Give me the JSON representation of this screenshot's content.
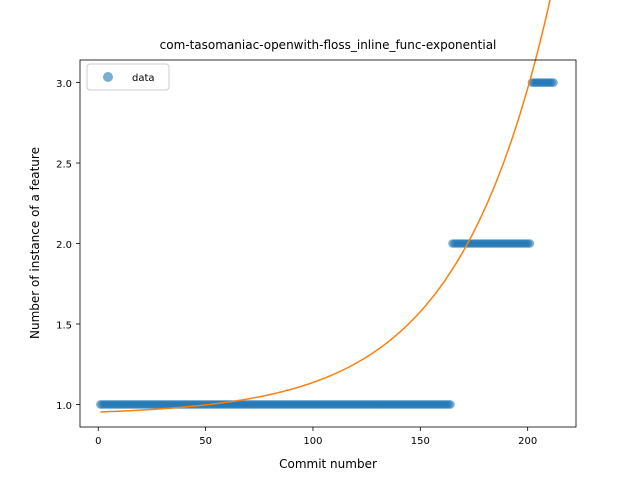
{
  "chart_data": {
    "type": "scatter",
    "title": "com-tasomaniac-openwith-floss_inline_func-exponential",
    "xlabel": "Commit number",
    "ylabel": "Number of instance of a feature",
    "xlim": [
      -8.5,
      222.5
    ],
    "ylim": [
      0.86,
      3.14
    ],
    "xticks": [
      0,
      50,
      100,
      150,
      200
    ],
    "xtick_labels": [
      "0",
      "50",
      "100",
      "150",
      "200"
    ],
    "yticks": [
      1.0,
      1.5,
      2.0,
      2.5,
      3.0
    ],
    "ytick_labels": [
      "1.0",
      "1.5",
      "2.0",
      "2.5",
      "3.0"
    ],
    "grid": false,
    "legend_position": "top-left",
    "series": [
      {
        "name": "data",
        "kind": "scatter",
        "color": "#1f77b4",
        "segments": [
          {
            "x_start": 1,
            "x_end": 164,
            "y": 1
          },
          {
            "x_start": 165,
            "x_end": 201,
            "y": 2
          },
          {
            "x_start": 202,
            "x_end": 212,
            "y": 3
          }
        ]
      },
      {
        "kind": "line",
        "color": "#ff7f0e",
        "model": "exponential",
        "x_range": [
          1,
          212
        ],
        "a": 0.0205,
        "b": 0.02298,
        "c": 0.9326
      }
    ]
  }
}
